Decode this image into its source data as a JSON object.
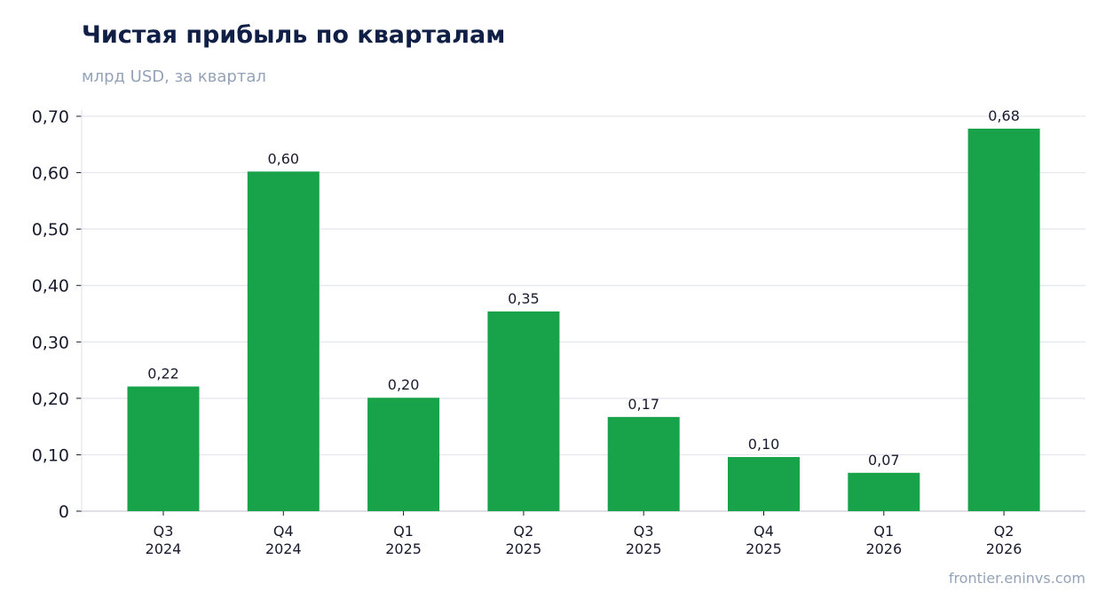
{
  "header": {
    "title": "Чистая прибыль по кварталам",
    "subtitle": "млрд USD, за квартал"
  },
  "footer": {
    "source": "frontier.eninvs.com"
  },
  "colors": {
    "bar": "#18a34a",
    "grid": "#e3e6ee",
    "axis": "#cbd0da"
  },
  "chart_data": {
    "type": "bar",
    "categories": [
      "Q3\n2024",
      "Q4\n2024",
      "Q1\n2025",
      "Q2\n2025",
      "Q3\n2025",
      "Q4\n2025",
      "Q1\n2026",
      "Q2\n2026"
    ],
    "values": [
      0.221,
      0.602,
      0.201,
      0.354,
      0.167,
      0.096,
      0.068,
      0.678
    ],
    "data_labels": [
      "0,22",
      "0,60",
      "0,20",
      "0,35",
      "0,17",
      "0,10",
      "0,07",
      "0,68"
    ],
    "title": "Чистая прибыль по кварталам",
    "subtitle": "млрд USD, за квартал",
    "ylim": [
      0,
      0.7
    ],
    "yticks": [
      0,
      0.1,
      0.2,
      0.3,
      0.4,
      0.5,
      0.6,
      0.7
    ],
    "ytick_labels": [
      "0",
      "0,10",
      "0,20",
      "0,30",
      "0,40",
      "0,50",
      "0,60",
      "0,70"
    ],
    "grid": true,
    "legend": "none"
  }
}
